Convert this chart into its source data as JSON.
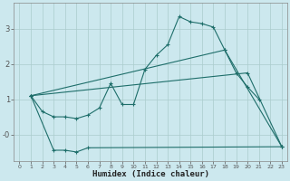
{
  "xlabel": "Humidex (Indice chaleur)",
  "bg_color": "#cce8ee",
  "grid_color": "#aacccc",
  "line_color": "#1e6e6a",
  "xlim": [
    -0.5,
    23.5
  ],
  "ylim": [
    -0.75,
    3.75
  ],
  "xticks": [
    0,
    1,
    2,
    3,
    4,
    5,
    6,
    7,
    8,
    9,
    10,
    11,
    12,
    13,
    14,
    15,
    16,
    17,
    18,
    19,
    20,
    21,
    22,
    23
  ],
  "yticks": [
    0,
    1,
    2,
    3
  ],
  "ytick_labels": [
    "-0",
    "1",
    "2",
    "3"
  ],
  "line1_x": [
    1,
    2,
    3,
    4,
    5,
    6,
    7,
    8,
    9,
    10,
    11,
    12,
    13,
    14,
    15,
    16,
    17,
    18,
    19,
    20,
    21
  ],
  "line1_y": [
    1.1,
    0.65,
    0.5,
    0.5,
    0.45,
    0.55,
    0.75,
    1.45,
    0.85,
    0.85,
    1.85,
    2.25,
    2.55,
    3.35,
    3.2,
    3.15,
    3.05,
    2.4,
    1.75,
    1.35,
    1.0
  ],
  "line2_x": [
    1,
    2,
    3,
    4,
    5,
    6,
    7,
    8,
    9,
    10,
    11,
    12,
    13,
    14,
    15,
    16,
    17,
    18,
    19,
    20,
    21,
    22,
    23
  ],
  "line2_y": [
    1.1,
    null,
    null,
    null,
    null,
    null,
    null,
    null,
    null,
    null,
    null,
    null,
    null,
    null,
    null,
    null,
    null,
    null,
    null,
    1.75,
    null,
    null,
    -0.35
  ],
  "line3_x": [
    1,
    2,
    3,
    4,
    5,
    6,
    7,
    8,
    9,
    10,
    11,
    12,
    13,
    14,
    15,
    16,
    17,
    18,
    19,
    20,
    21,
    22,
    23
  ],
  "line3_y": [
    1.1,
    null,
    null,
    null,
    null,
    null,
    null,
    null,
    null,
    null,
    null,
    null,
    null,
    null,
    null,
    null,
    null,
    2.4,
    null,
    null,
    null,
    null,
    -0.35
  ],
  "line4_x": [
    1,
    3,
    4,
    5,
    6,
    23
  ],
  "line4_y": [
    1.1,
    -0.45,
    -0.45,
    -0.5,
    -0.38,
    -0.35
  ],
  "marker_size": 2.5
}
